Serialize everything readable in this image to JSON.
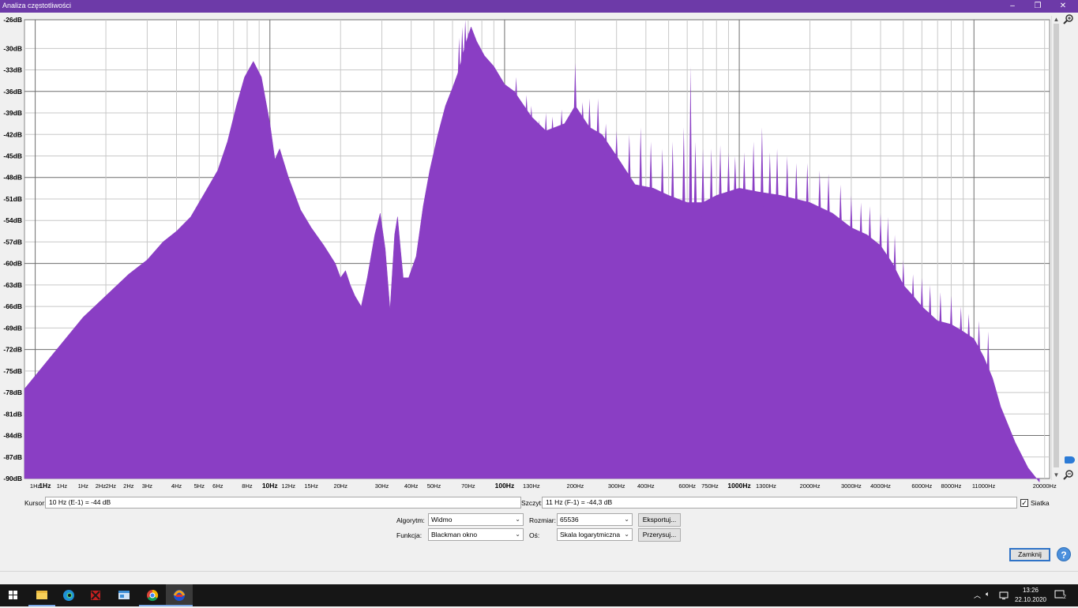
{
  "window": {
    "title": "Analiza częstotliwości"
  },
  "chart_data": {
    "type": "area",
    "xscale": "log",
    "xlim": [
      0.9,
      21000
    ],
    "ylim": [
      -90,
      -26
    ],
    "grid": true,
    "fill_color": "#8a3ec4",
    "y_ticks": [
      -26,
      -30,
      -33,
      -36,
      -39,
      -42,
      -45,
      -48,
      -51,
      -54,
      -57,
      -60,
      -63,
      -66,
      -69,
      -72,
      -75,
      -78,
      -81,
      -84,
      -87,
      -90
    ],
    "y_major": [
      -26,
      -36,
      -48,
      -60,
      -72,
      -84,
      -90
    ],
    "x_tick_labels": [
      "1Hz",
      "1Hz",
      "1Hz",
      "1Hz",
      "2Hz",
      "2Hz",
      "2Hz",
      "3Hz",
      "4Hz",
      "5Hz",
      "6Hz",
      "8Hz",
      "10Hz",
      "12Hz",
      "15Hz",
      "20Hz",
      "30Hz",
      "40Hz",
      "50Hz",
      "70Hz",
      "100Hz",
      "130Hz",
      "200Hz",
      "300Hz",
      "400Hz",
      "600Hz",
      "750Hz",
      "1000Hz",
      "1300Hz",
      "2000Hz",
      "3000Hz",
      "4000Hz",
      "6000Hz",
      "8000Hz",
      "11000Hz",
      "20000Hz"
    ],
    "x_tick_values": [
      1,
      1.1,
      1.3,
      1.6,
      1.9,
      2.1,
      2.5,
      3,
      4,
      5,
      6,
      8,
      10,
      12,
      15,
      20,
      30,
      40,
      50,
      70,
      100,
      130,
      200,
      300,
      400,
      600,
      750,
      1000,
      1300,
      2000,
      3000,
      4000,
      6000,
      8000,
      11000,
      20000
    ],
    "x_tick_bold": [
      false,
      true,
      false,
      false,
      false,
      false,
      false,
      false,
      false,
      false,
      false,
      false,
      true,
      false,
      false,
      false,
      false,
      false,
      false,
      false,
      true,
      false,
      false,
      false,
      false,
      false,
      false,
      true,
      false,
      false,
      false,
      false,
      false,
      false,
      false,
      false
    ],
    "envelope": [
      [
        0.9,
        -77.5
      ],
      [
        1.2,
        -72.5
      ],
      [
        1.6,
        -67.5
      ],
      [
        2,
        -64.5
      ],
      [
        2.5,
        -61.5
      ],
      [
        3,
        -59.5
      ],
      [
        3.5,
        -57
      ],
      [
        4,
        -55.5
      ],
      [
        4.6,
        -53.5
      ],
      [
        5.2,
        -50.5
      ],
      [
        6,
        -47
      ],
      [
        6.6,
        -43
      ],
      [
        7.2,
        -38
      ],
      [
        7.8,
        -34
      ],
      [
        8.5,
        -31.8
      ],
      [
        9.2,
        -34
      ],
      [
        10,
        -40.5
      ],
      [
        10.5,
        -45.5
      ],
      [
        11,
        -44
      ],
      [
        12,
        -48
      ],
      [
        13.5,
        -52.5
      ],
      [
        15,
        -55
      ],
      [
        17,
        -57.5
      ],
      [
        19,
        -60
      ],
      [
        20,
        -62
      ],
      [
        21,
        -61
      ],
      [
        22,
        -63
      ],
      [
        23,
        -64.5
      ],
      [
        24.5,
        -66
      ],
      [
        26,
        -62
      ],
      [
        28,
        -56
      ],
      [
        29.5,
        -53
      ],
      [
        31,
        -58
      ],
      [
        32.5,
        -66.5
      ],
      [
        34,
        -56
      ],
      [
        35,
        -53.5
      ],
      [
        36,
        -58
      ],
      [
        37,
        -62
      ],
      [
        39,
        -62
      ],
      [
        42,
        -59
      ],
      [
        45,
        -52
      ],
      [
        48,
        -47
      ],
      [
        52,
        -42
      ],
      [
        56,
        -38
      ],
      [
        60,
        -35.5
      ],
      [
        64,
        -33
      ],
      [
        68,
        -29.5
      ],
      [
        72,
        -27
      ],
      [
        76,
        -29
      ],
      [
        82,
        -31
      ],
      [
        90,
        -32.5
      ],
      [
        100,
        -35
      ],
      [
        110,
        -36
      ],
      [
        130,
        -39.5
      ],
      [
        150,
        -41.5
      ],
      [
        180,
        -40.5
      ],
      [
        200,
        -38
      ],
      [
        230,
        -41
      ],
      [
        260,
        -42
      ],
      [
        300,
        -45
      ],
      [
        360,
        -49
      ],
      [
        430,
        -49.5
      ],
      [
        500,
        -50.5
      ],
      [
        600,
        -51.5
      ],
      [
        700,
        -51.5
      ],
      [
        800,
        -50.5
      ],
      [
        1000,
        -49.5
      ],
      [
        1200,
        -50
      ],
      [
        1500,
        -50.5
      ],
      [
        2000,
        -51.5
      ],
      [
        2500,
        -53
      ],
      [
        3000,
        -55
      ],
      [
        3500,
        -56
      ],
      [
        4000,
        -57.5
      ],
      [
        4500,
        -60
      ],
      [
        5000,
        -63
      ],
      [
        5500,
        -64.5
      ],
      [
        6000,
        -66
      ],
      [
        7000,
        -68
      ],
      [
        8000,
        -68.5
      ],
      [
        9000,
        -69.5
      ],
      [
        10000,
        -70.5
      ],
      [
        11000,
        -73
      ],
      [
        12000,
        -76
      ],
      [
        13000,
        -80
      ],
      [
        15000,
        -85
      ],
      [
        17000,
        -88.5
      ],
      [
        19000,
        -90.5
      ]
    ],
    "spikes": [
      [
        64,
        -28.5
      ],
      [
        66,
        -27
      ],
      [
        68,
        -26
      ],
      [
        70,
        -27.5
      ],
      [
        72,
        -28.5
      ],
      [
        76,
        -30
      ],
      [
        80,
        -31
      ],
      [
        84,
        -32
      ],
      [
        88,
        -33
      ],
      [
        93,
        -34
      ],
      [
        98,
        -34.5
      ],
      [
        112,
        -34
      ],
      [
        124,
        -36.5
      ],
      [
        130,
        -38
      ],
      [
        140,
        -40
      ],
      [
        150,
        -39
      ],
      [
        160,
        -39.5
      ],
      [
        175,
        -38.5
      ],
      [
        200,
        -32
      ],
      [
        215,
        -37.5
      ],
      [
        230,
        -37
      ],
      [
        250,
        -37
      ],
      [
        270,
        -40.5
      ],
      [
        300,
        -41.5
      ],
      [
        340,
        -42
      ],
      [
        380,
        -41
      ],
      [
        420,
        -43
      ],
      [
        470,
        -44
      ],
      [
        520,
        -43
      ],
      [
        580,
        -41
      ],
      [
        620,
        -32.5
      ],
      [
        650,
        -43
      ],
      [
        700,
        -44
      ],
      [
        760,
        -44
      ],
      [
        830,
        -43.5
      ],
      [
        900,
        -44.5
      ],
      [
        960,
        -45
      ],
      [
        1050,
        -44.5
      ],
      [
        1150,
        -43
      ],
      [
        1250,
        -41
      ],
      [
        1350,
        -44.5
      ],
      [
        1450,
        -44
      ],
      [
        1600,
        -45
      ],
      [
        1750,
        -46
      ],
      [
        1950,
        -46
      ],
      [
        2200,
        -47
      ],
      [
        2400,
        -47.5
      ],
      [
        2700,
        -49
      ],
      [
        3000,
        -50.5
      ],
      [
        3300,
        -51.5
      ],
      [
        3600,
        -52
      ],
      [
        4000,
        -53
      ],
      [
        4300,
        -53.5
      ],
      [
        4600,
        -56
      ],
      [
        5000,
        -59.5
      ],
      [
        5500,
        -61.5
      ],
      [
        6000,
        -62
      ],
      [
        6500,
        -63
      ],
      [
        7200,
        -64
      ],
      [
        8000,
        -64.5
      ],
      [
        8800,
        -66
      ],
      [
        9500,
        -67
      ],
      [
        10500,
        -68
      ],
      [
        11500,
        -69.5
      ]
    ]
  },
  "cursor": {
    "label": "Kursor:",
    "value": "10 Hz (E-1) = -44 dB"
  },
  "peak": {
    "label": "Szczyt:",
    "value": "11 Hz (F-1) = -44,3 dB"
  },
  "grid_option": {
    "label": "Siatka",
    "checked": true
  },
  "controls": {
    "algorithm": {
      "label": "Algorytm:",
      "value": "Widmo"
    },
    "function": {
      "label": "Funkcja:",
      "value": "Blackman okno"
    },
    "size": {
      "label": "Rozmiar:",
      "value": "65536"
    },
    "axis": {
      "label": "Oś:",
      "value": "Skala logarytmiczna"
    },
    "export_label": "Eksportuj...",
    "redraw_label": "Przerysuj...",
    "close_label": "Zamknij",
    "help_label": "?"
  },
  "taskbar": {
    "time": "13:26",
    "date": "22.10.2020",
    "notifications": "2",
    "apps": [
      "start-button",
      "file-explorer",
      "edge",
      "app-red",
      "app-window",
      "chrome",
      "audacity"
    ]
  }
}
